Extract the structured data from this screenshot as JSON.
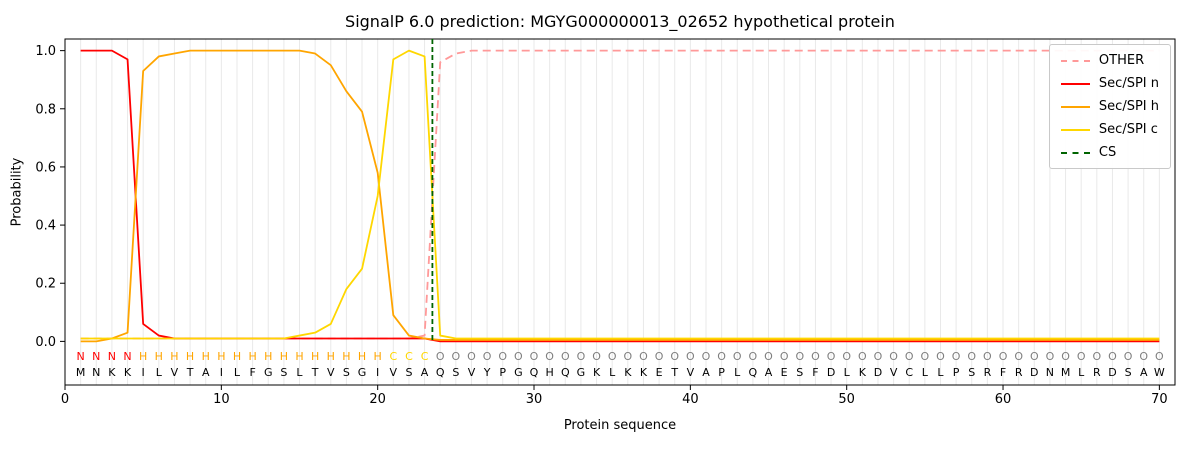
{
  "title": "SignalP 6.0 prediction: MGYG000000013_02652 hypothetical protein",
  "axes": {
    "xlabel": "Protein sequence",
    "ylabel": "Probability",
    "xticks": [
      0,
      10,
      20,
      30,
      40,
      50,
      60,
      70
    ],
    "yticks": [
      0.0,
      0.2,
      0.4,
      0.6,
      0.8,
      1.0
    ]
  },
  "legend": [
    {
      "label": "OTHER",
      "color": "#ff9999",
      "dash": true
    },
    {
      "label": "Sec/SPI n",
      "color": "#ff0000",
      "dash": false
    },
    {
      "label": "Sec/SPI h",
      "color": "#ffa500",
      "dash": false
    },
    {
      "label": "Sec/SPI c",
      "color": "#ffd700",
      "dash": false
    },
    {
      "label": "CS",
      "color": "#006400",
      "dash": true
    }
  ],
  "sequence": "MNKKILVTAILFGSLTVSGIVSAQSVYPGQHQGKLKKETVAPLQAESFDLKDVCLLPSRFRDNMLRDSAW",
  "regions": [
    {
      "label": "N",
      "color": "#ff0000",
      "start": 1,
      "end": 4
    },
    {
      "label": "H",
      "color": "#ffa500",
      "start": 5,
      "end": 20
    },
    {
      "label": "C",
      "color": "#ffd700",
      "start": 21,
      "end": 23
    },
    {
      "label": "O",
      "color": "#7f7f7f",
      "start": 24,
      "end": 70
    }
  ],
  "chart_data": {
    "type": "line",
    "title": "SignalP 6.0 prediction: MGYG000000013_02652 hypothetical protein",
    "xlabel": "Protein sequence",
    "ylabel": "Probability",
    "xlim": [
      0,
      71
    ],
    "ylim": [
      -0.15,
      1.04
    ],
    "grid": "vertical-per-residue",
    "legend_position": "upper right",
    "cs_line": {
      "x": 23.5,
      "color": "#006400",
      "label": "CS"
    },
    "x": [
      1,
      2,
      3,
      4,
      5,
      6,
      7,
      8,
      9,
      10,
      11,
      12,
      13,
      14,
      15,
      16,
      17,
      18,
      19,
      20,
      21,
      22,
      23,
      24,
      25,
      26,
      27,
      28,
      29,
      30,
      31,
      32,
      33,
      34,
      35,
      36,
      37,
      38,
      39,
      40,
      41,
      42,
      43,
      44,
      45,
      46,
      47,
      48,
      49,
      50,
      51,
      52,
      53,
      54,
      55,
      56,
      57,
      58,
      59,
      60,
      61,
      62,
      63,
      64,
      65,
      66,
      67,
      68,
      69,
      70
    ],
    "series": [
      {
        "name": "OTHER",
        "color": "#ff9999",
        "dash": true,
        "values": [
          0.01,
          0.01,
          0.01,
          0.01,
          0.01,
          0.01,
          0.01,
          0.01,
          0.01,
          0.01,
          0.01,
          0.01,
          0.01,
          0.01,
          0.01,
          0.01,
          0.01,
          0.01,
          0.01,
          0.01,
          0.01,
          0.01,
          0.02,
          0.96,
          0.99,
          1.0,
          1.0,
          1.0,
          1.0,
          1.0,
          1.0,
          1.0,
          1.0,
          1.0,
          1.0,
          1.0,
          1.0,
          1.0,
          1.0,
          1.0,
          1.0,
          1.0,
          1.0,
          1.0,
          1.0,
          1.0,
          1.0,
          1.0,
          1.0,
          1.0,
          1.0,
          1.0,
          1.0,
          1.0,
          1.0,
          1.0,
          1.0,
          1.0,
          1.0,
          1.0,
          1.0,
          1.0,
          1.0,
          1.0,
          1.0,
          1.0,
          1.0,
          1.0,
          1.0,
          1.0
        ]
      },
      {
        "name": "Sec/SPI n",
        "color": "#ff0000",
        "dash": false,
        "values": [
          1.0,
          1.0,
          1.0,
          0.97,
          0.06,
          0.02,
          0.01,
          0.01,
          0.01,
          0.01,
          0.01,
          0.01,
          0.01,
          0.01,
          0.01,
          0.01,
          0.01,
          0.01,
          0.01,
          0.01,
          0.01,
          0.01,
          0.01,
          0.0,
          0.0,
          0.0,
          0.0,
          0.0,
          0.0,
          0.0,
          0.0,
          0.0,
          0.0,
          0.0,
          0.0,
          0.0,
          0.0,
          0.0,
          0.0,
          0.0,
          0.0,
          0.0,
          0.0,
          0.0,
          0.0,
          0.0,
          0.0,
          0.0,
          0.0,
          0.0,
          0.0,
          0.0,
          0.0,
          0.0,
          0.0,
          0.0,
          0.0,
          0.0,
          0.0,
          0.0,
          0.0,
          0.0,
          0.0,
          0.0,
          0.0,
          0.0,
          0.0,
          0.0,
          0.0,
          0.0
        ]
      },
      {
        "name": "Sec/SPI h",
        "color": "#ffa500",
        "dash": false,
        "values": [
          0.0,
          0.0,
          0.01,
          0.03,
          0.93,
          0.98,
          0.99,
          1.0,
          1.0,
          1.0,
          1.0,
          1.0,
          1.0,
          1.0,
          1.0,
          0.99,
          0.95,
          0.86,
          0.79,
          0.58,
          0.09,
          0.02,
          0.01,
          0.005,
          0.005,
          0.005,
          0.005,
          0.005,
          0.005,
          0.005,
          0.005,
          0.005,
          0.005,
          0.005,
          0.005,
          0.005,
          0.005,
          0.005,
          0.005,
          0.005,
          0.005,
          0.005,
          0.005,
          0.005,
          0.005,
          0.005,
          0.005,
          0.005,
          0.005,
          0.005,
          0.005,
          0.005,
          0.005,
          0.005,
          0.005,
          0.005,
          0.005,
          0.005,
          0.005,
          0.005,
          0.005,
          0.005,
          0.005,
          0.005,
          0.005,
          0.005,
          0.005,
          0.005,
          0.005,
          0.005
        ]
      },
      {
        "name": "Sec/SPI c",
        "color": "#ffd700",
        "dash": false,
        "values": [
          0.01,
          0.01,
          0.01,
          0.01,
          0.01,
          0.01,
          0.01,
          0.01,
          0.01,
          0.01,
          0.01,
          0.01,
          0.01,
          0.01,
          0.02,
          0.03,
          0.06,
          0.18,
          0.25,
          0.5,
          0.97,
          1.0,
          0.98,
          0.02,
          0.01,
          0.01,
          0.01,
          0.01,
          0.01,
          0.01,
          0.01,
          0.01,
          0.01,
          0.01,
          0.01,
          0.01,
          0.01,
          0.01,
          0.01,
          0.01,
          0.01,
          0.01,
          0.01,
          0.01,
          0.01,
          0.01,
          0.01,
          0.01,
          0.01,
          0.01,
          0.01,
          0.01,
          0.01,
          0.01,
          0.01,
          0.01,
          0.01,
          0.01,
          0.01,
          0.01,
          0.01,
          0.01,
          0.01,
          0.01,
          0.01,
          0.01,
          0.01,
          0.01,
          0.01,
          0.01
        ]
      }
    ]
  }
}
